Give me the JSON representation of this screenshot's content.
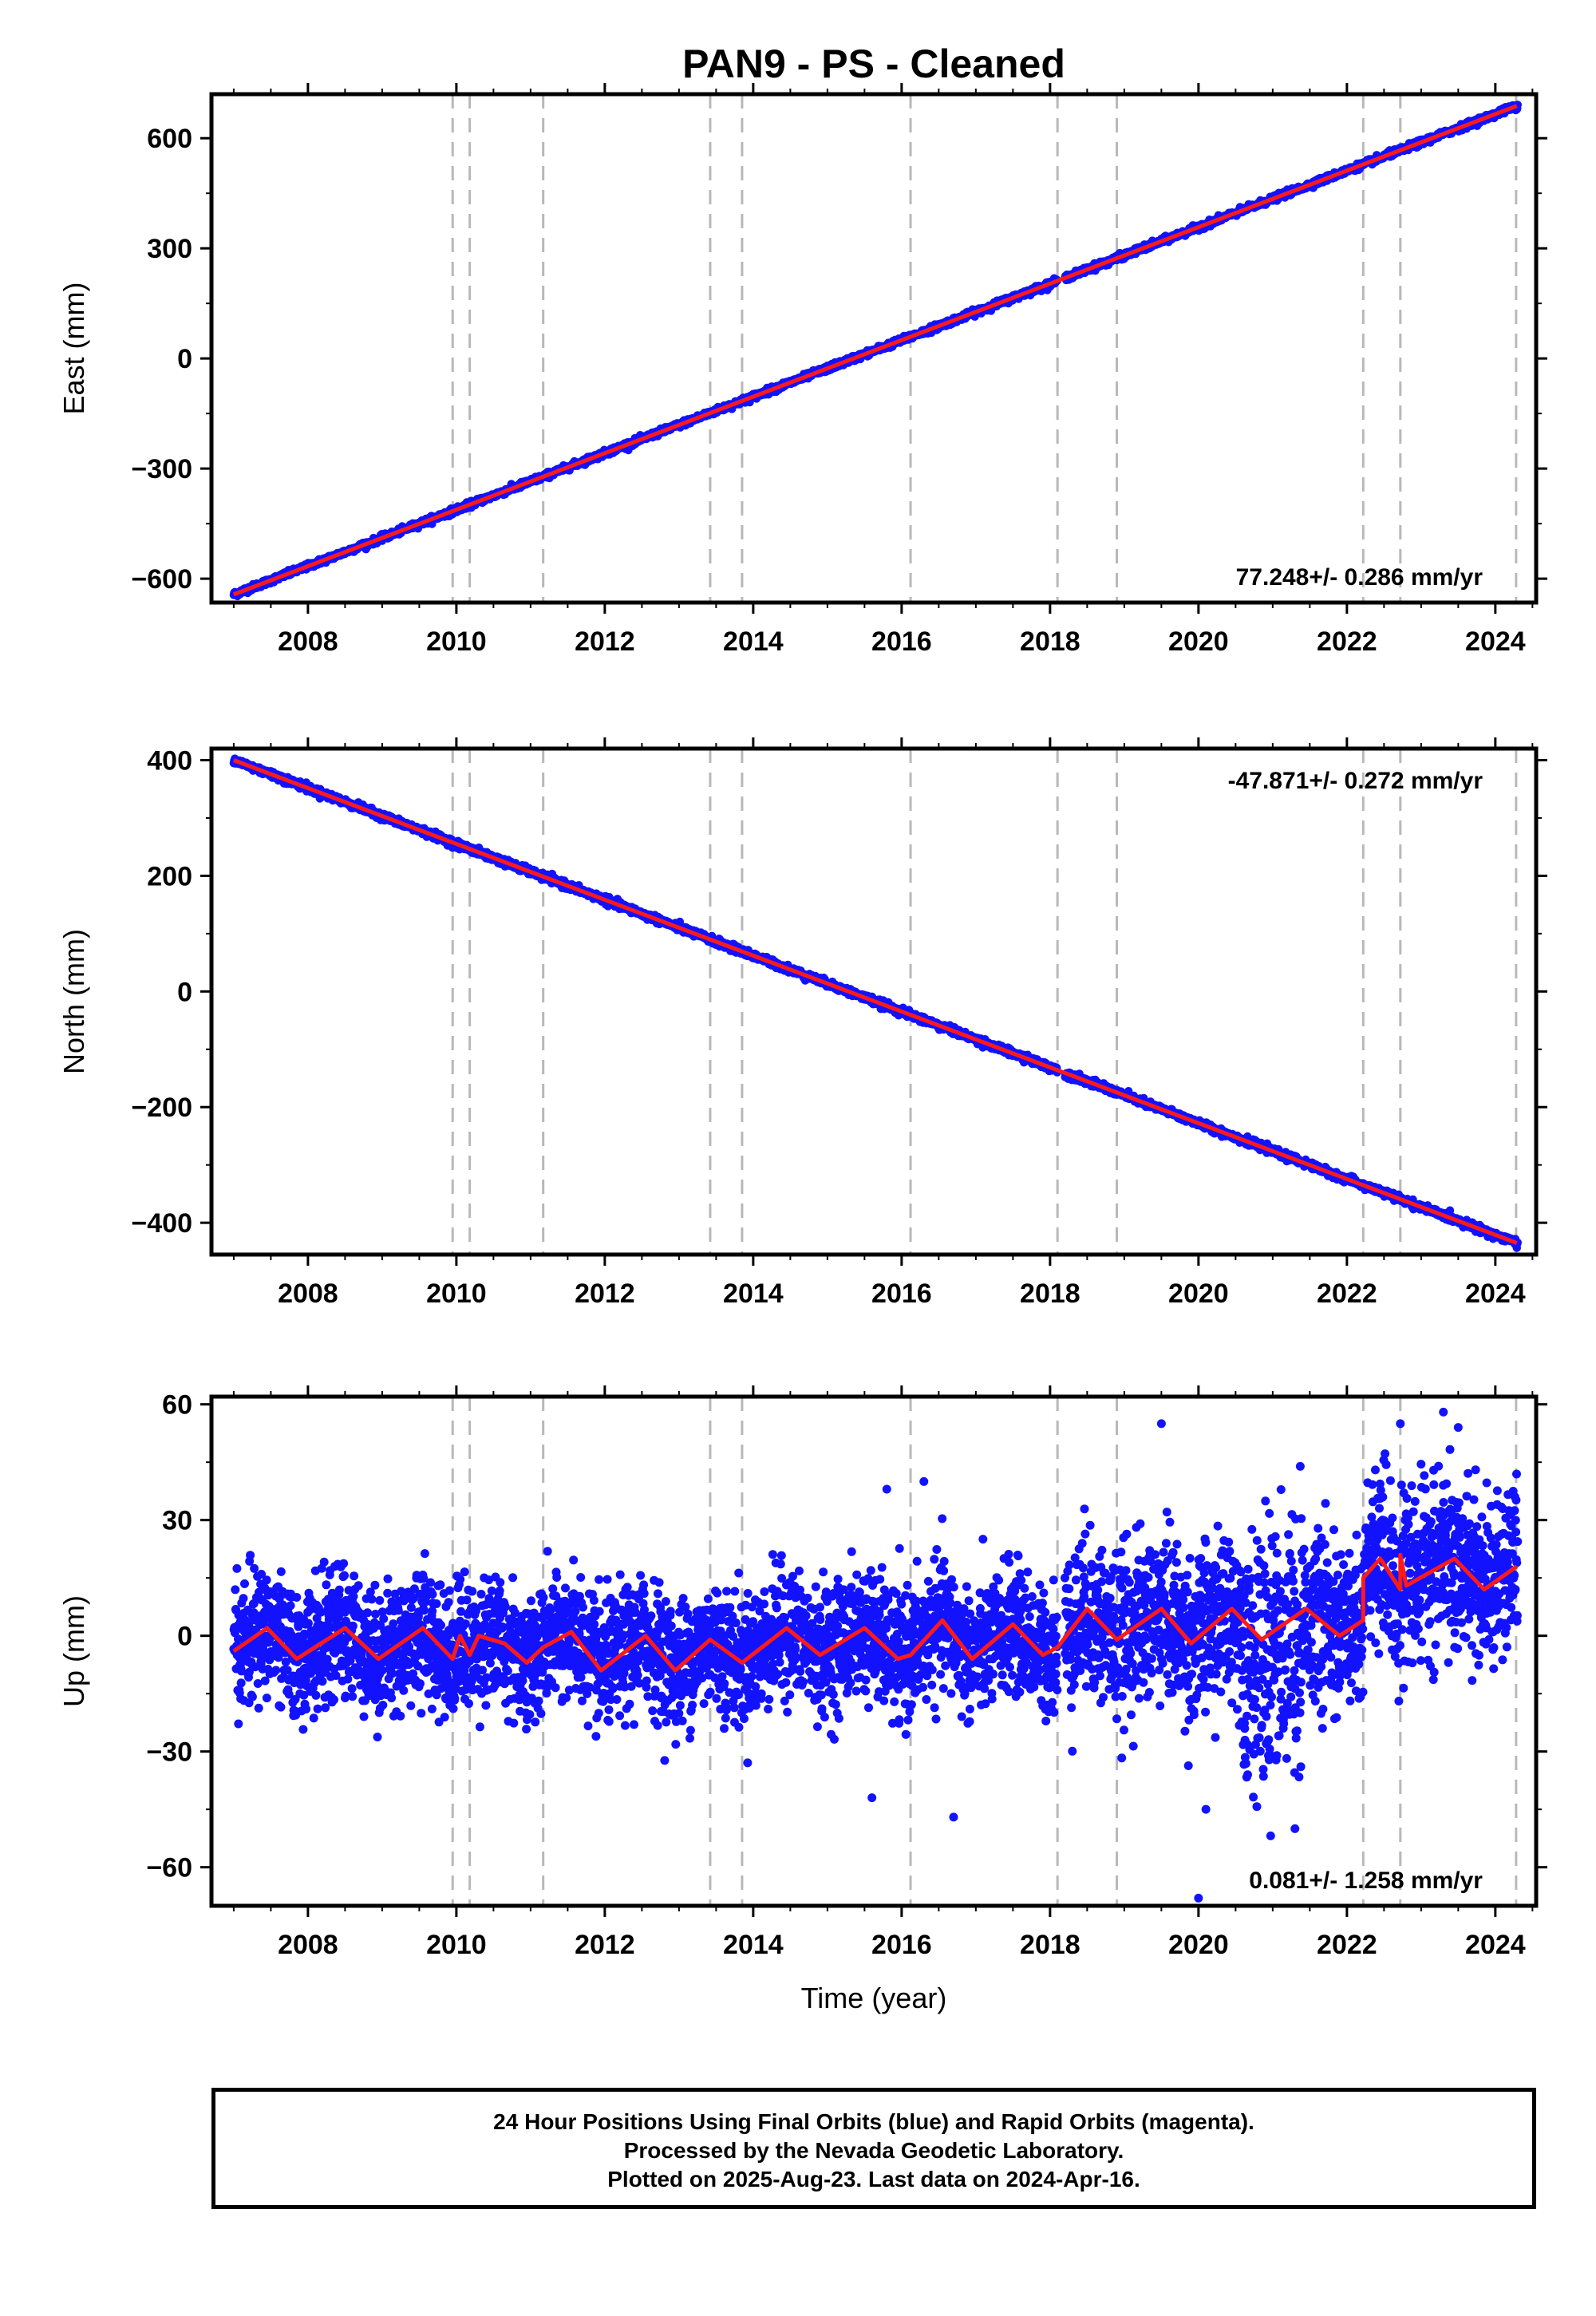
{
  "title": "PAN9  - PS - Cleaned",
  "colors": {
    "data": "#1212ff",
    "model": "#ff1a1a",
    "breaks": "#b8b8b8",
    "axis": "#000000"
  },
  "x_axis": {
    "label": "Time (year)",
    "range": [
      2006.7,
      2024.55
    ],
    "ticks": [
      2008,
      2010,
      2012,
      2014,
      2016,
      2018,
      2020,
      2022,
      2024
    ]
  },
  "breaks": [
    2009.95,
    2010.18,
    2011.17,
    2013.42,
    2013.85,
    2016.12,
    2018.1,
    2018.9,
    2022.22,
    2022.72,
    2024.28
  ],
  "chart_data": [
    {
      "type": "scatter",
      "component": "east",
      "ylabel": "East (mm)",
      "ylim": [
        -665,
        720
      ],
      "yticks": [
        -600,
        -300,
        0,
        300,
        600
      ],
      "rate_label": "77.248+/- 0.286 mm/yr",
      "x_range": [
        2007.0,
        2024.3
      ],
      "model": {
        "start": [
          2007.0,
          -643
        ],
        "end": [
          2024.29,
          688
        ],
        "seasonal_amp": 0
      },
      "scatter_sd": 4,
      "gap": [
        2018.1,
        2018.2
      ],
      "legend": "none",
      "grid": false
    },
    {
      "type": "scatter",
      "component": "north",
      "ylabel": "North (mm)",
      "ylim": [
        -455,
        420
      ],
      "yticks": [
        -400,
        -200,
        0,
        200,
        400
      ],
      "rate_label": "-47.871+/- 0.272 mm/yr",
      "x_range": [
        2007.0,
        2024.3
      ],
      "model": {
        "start": [
          2007.0,
          400
        ],
        "end": [
          2024.29,
          -435
        ],
        "seasonal_amp": 0
      },
      "scatter_sd": 3,
      "gap": [
        2018.1,
        2018.2
      ],
      "legend": "none",
      "grid": false
    },
    {
      "type": "scatter",
      "component": "up",
      "ylabel": "Up (mm)",
      "ylim": [
        -70,
        62
      ],
      "yticks": [
        -60,
        -30,
        0,
        30,
        60
      ],
      "rate_label": "0.081+/- 1.258 mm/yr",
      "x_range": [
        2007.0,
        2024.3
      ],
      "model_points": [
        [
          2007.0,
          -4
        ],
        [
          2007.45,
          2
        ],
        [
          2007.85,
          -6
        ],
        [
          2008.5,
          2
        ],
        [
          2008.95,
          -6
        ],
        [
          2009.55,
          2
        ],
        [
          2009.95,
          -6
        ],
        [
          2010.05,
          0
        ],
        [
          2010.18,
          -5
        ],
        [
          2010.3,
          0
        ],
        [
          2010.65,
          -2
        ],
        [
          2010.95,
          -7
        ],
        [
          2011.17,
          -3
        ],
        [
          2011.55,
          1
        ],
        [
          2011.95,
          -9
        ],
        [
          2012.55,
          0
        ],
        [
          2012.95,
          -9
        ],
        [
          2013.42,
          -1
        ],
        [
          2013.85,
          -7
        ],
        [
          2014.45,
          2
        ],
        [
          2014.9,
          -5
        ],
        [
          2015.5,
          2
        ],
        [
          2015.95,
          -6
        ],
        [
          2016.12,
          -5
        ],
        [
          2016.55,
          4
        ],
        [
          2016.95,
          -6
        ],
        [
          2017.5,
          3
        ],
        [
          2017.9,
          -5
        ],
        [
          2018.1,
          -3
        ],
        [
          2018.5,
          7
        ],
        [
          2018.9,
          -1
        ],
        [
          2019.5,
          7
        ],
        [
          2019.9,
          -2
        ],
        [
          2020.45,
          7
        ],
        [
          2020.85,
          -1
        ],
        [
          2021.45,
          7
        ],
        [
          2021.9,
          0
        ],
        [
          2022.22,
          4
        ],
        [
          2022.22,
          15
        ],
        [
          2022.45,
          20
        ],
        [
          2022.72,
          12
        ],
        [
          2022.72,
          21
        ],
        [
          2022.8,
          13
        ],
        [
          2023.45,
          20
        ],
        [
          2023.85,
          12
        ],
        [
          2024.29,
          18
        ]
      ],
      "noise_sd": 8,
      "outliers": [
        [
          2015.8,
          38
        ],
        [
          2016.3,
          40
        ],
        [
          2019.5,
          55
        ],
        [
          2022.72,
          55
        ],
        [
          2023.3,
          58
        ],
        [
          2023.5,
          54
        ],
        [
          2015.6,
          -42
        ],
        [
          2016.7,
          -47
        ],
        [
          2020.1,
          -45
        ],
        [
          2021.3,
          -50
        ],
        [
          2020.0,
          -68
        ]
      ],
      "gap": [
        2018.1,
        2018.2
      ],
      "legend": "none",
      "grid": false
    }
  ],
  "footer": {
    "line1": "24 Hour Positions Using Final Orbits (blue) and Rapid Orbits (magenta).",
    "line2": "Processed by the Nevada Geodetic Laboratory.",
    "line3": "Plotted on 2025-Aug-23. Last data on 2024-Apr-16."
  }
}
